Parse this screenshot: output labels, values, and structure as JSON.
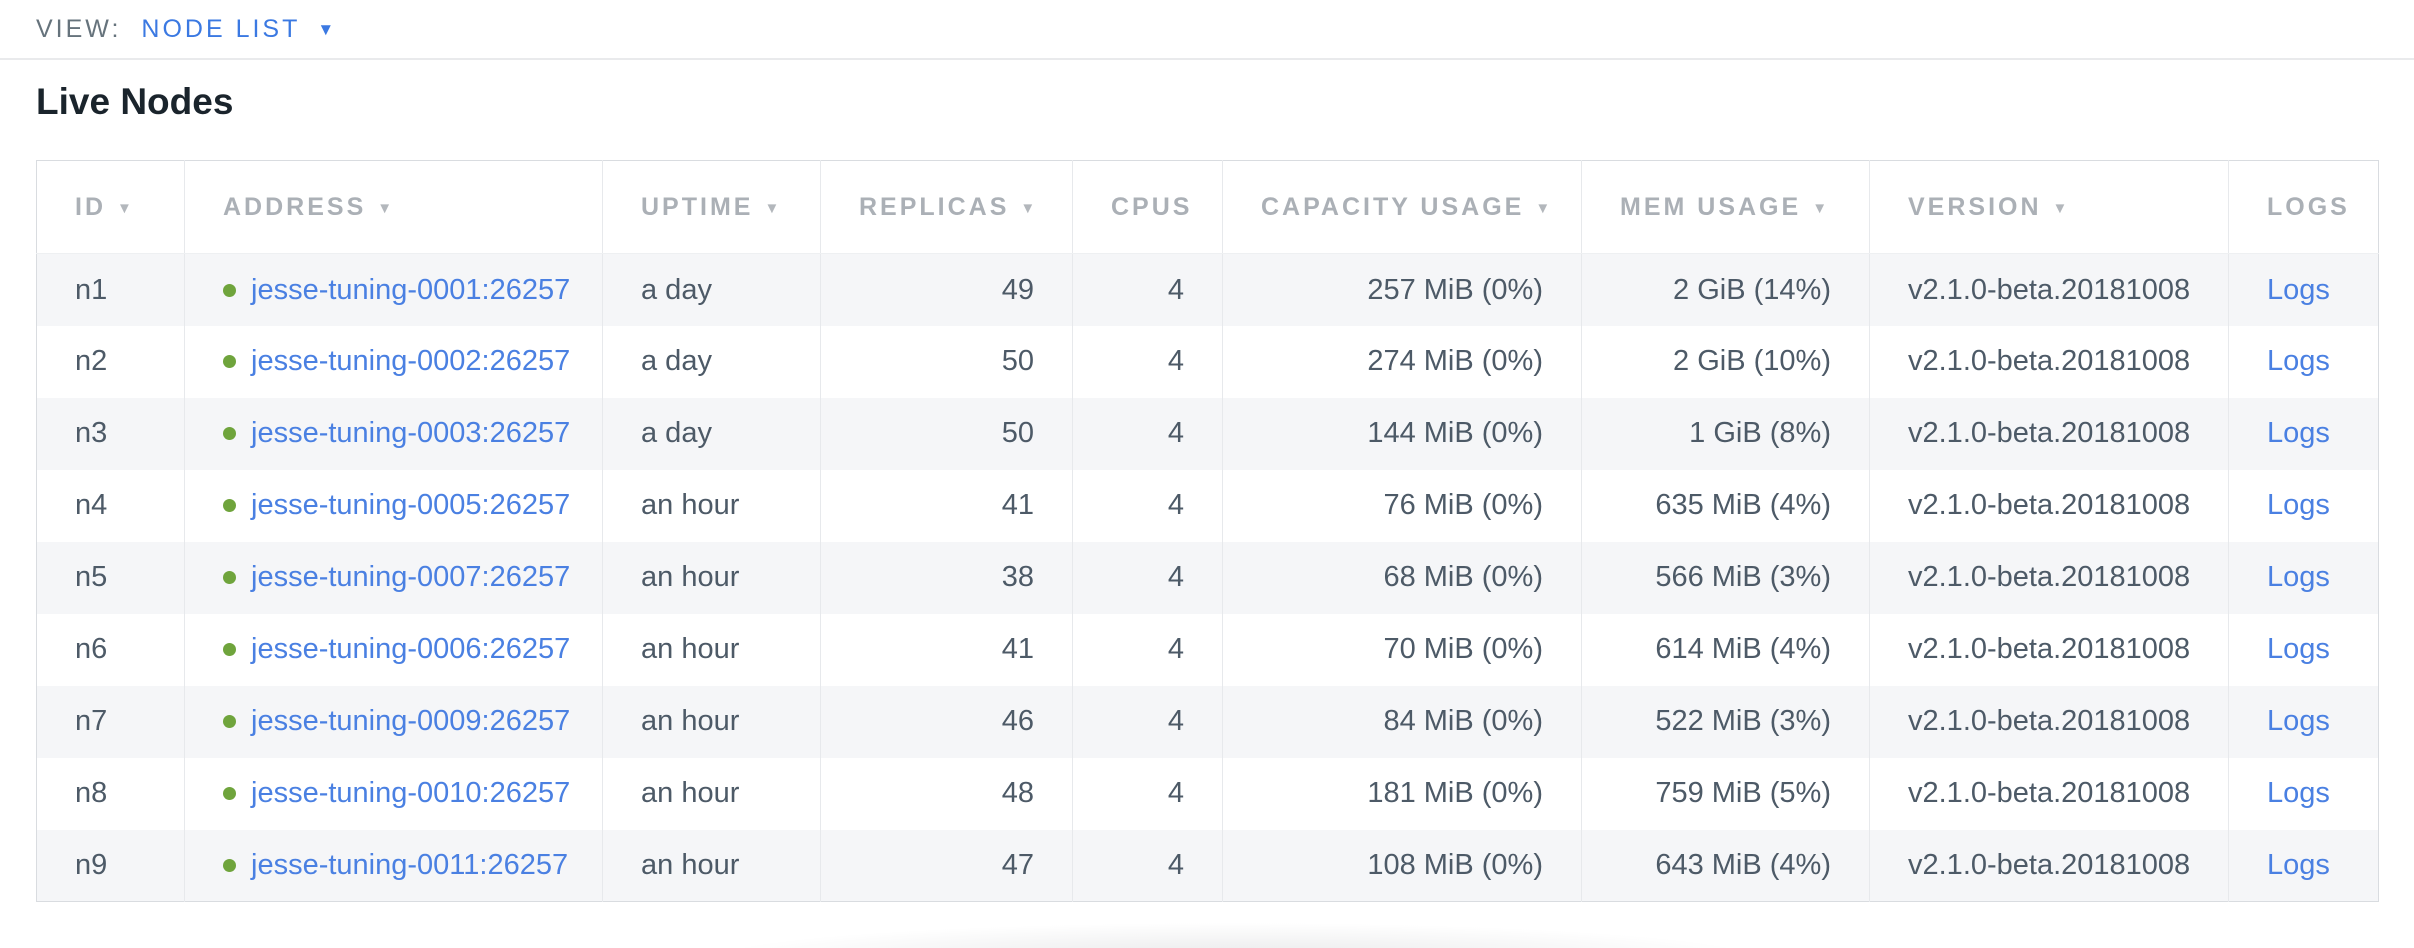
{
  "view_bar": {
    "label": "VIEW:",
    "selected": "NODE LIST",
    "caret_icon": "▼"
  },
  "page": {
    "title": "Live Nodes"
  },
  "table": {
    "sort_icon": "▼",
    "columns": [
      {
        "key": "id",
        "label": "ID",
        "sortable": true,
        "align": "left"
      },
      {
        "key": "address",
        "label": "ADDRESS",
        "sortable": true,
        "align": "left"
      },
      {
        "key": "uptime",
        "label": "UPTIME",
        "sortable": true,
        "align": "left"
      },
      {
        "key": "replicas",
        "label": "REPLICAS",
        "sortable": true,
        "align": "right"
      },
      {
        "key": "cpus",
        "label": "CPUS",
        "sortable": false,
        "align": "right"
      },
      {
        "key": "capacity",
        "label": "CAPACITY USAGE",
        "sortable": true,
        "align": "right"
      },
      {
        "key": "mem",
        "label": "MEM USAGE",
        "sortable": true,
        "align": "right"
      },
      {
        "key": "version",
        "label": "VERSION",
        "sortable": true,
        "align": "left"
      },
      {
        "key": "logs",
        "label": "LOGS",
        "sortable": false,
        "align": "left"
      }
    ],
    "rows": [
      {
        "id": "n1",
        "status": "live",
        "address": "jesse-tuning-0001:26257",
        "uptime": "a day",
        "replicas": "49",
        "cpus": "4",
        "capacity": "257 MiB (0%)",
        "mem": "2 GiB (14%)",
        "version": "v2.1.0-beta.20181008",
        "logs": "Logs"
      },
      {
        "id": "n2",
        "status": "live",
        "address": "jesse-tuning-0002:26257",
        "uptime": "a day",
        "replicas": "50",
        "cpus": "4",
        "capacity": "274 MiB (0%)",
        "mem": "2 GiB (10%)",
        "version": "v2.1.0-beta.20181008",
        "logs": "Logs"
      },
      {
        "id": "n3",
        "status": "live",
        "address": "jesse-tuning-0003:26257",
        "uptime": "a day",
        "replicas": "50",
        "cpus": "4",
        "capacity": "144 MiB (0%)",
        "mem": "1 GiB (8%)",
        "version": "v2.1.0-beta.20181008",
        "logs": "Logs"
      },
      {
        "id": "n4",
        "status": "live",
        "address": "jesse-tuning-0005:26257",
        "uptime": "an hour",
        "replicas": "41",
        "cpus": "4",
        "capacity": "76 MiB (0%)",
        "mem": "635 MiB (4%)",
        "version": "v2.1.0-beta.20181008",
        "logs": "Logs"
      },
      {
        "id": "n5",
        "status": "live",
        "address": "jesse-tuning-0007:26257",
        "uptime": "an hour",
        "replicas": "38",
        "cpus": "4",
        "capacity": "68 MiB (0%)",
        "mem": "566 MiB (3%)",
        "version": "v2.1.0-beta.20181008",
        "logs": "Logs"
      },
      {
        "id": "n6",
        "status": "live",
        "address": "jesse-tuning-0006:26257",
        "uptime": "an hour",
        "replicas": "41",
        "cpus": "4",
        "capacity": "70 MiB (0%)",
        "mem": "614 MiB (4%)",
        "version": "v2.1.0-beta.20181008",
        "logs": "Logs"
      },
      {
        "id": "n7",
        "status": "live",
        "address": "jesse-tuning-0009:26257",
        "uptime": "an hour",
        "replicas": "46",
        "cpus": "4",
        "capacity": "84 MiB (0%)",
        "mem": "522 MiB (3%)",
        "version": "v2.1.0-beta.20181008",
        "logs": "Logs"
      },
      {
        "id": "n8",
        "status": "live",
        "address": "jesse-tuning-0010:26257",
        "uptime": "an hour",
        "replicas": "48",
        "cpus": "4",
        "capacity": "181 MiB (0%)",
        "mem": "759 MiB (5%)",
        "version": "v2.1.0-beta.20181008",
        "logs": "Logs"
      },
      {
        "id": "n9",
        "status": "live",
        "address": "jesse-tuning-0011:26257",
        "uptime": "an hour",
        "replicas": "47",
        "cpus": "4",
        "capacity": "108 MiB (0%)",
        "mem": "643 MiB (4%)",
        "version": "v2.1.0-beta.20181008",
        "logs": "Logs"
      }
    ]
  },
  "colors": {
    "accent_blue": "#3b79e2",
    "link_blue": "#4a80e2",
    "live_green": "#6fa43c",
    "header_gray": "#abb0b6",
    "body_text": "#4d5a67",
    "row_stripe": "#f5f6f8"
  }
}
